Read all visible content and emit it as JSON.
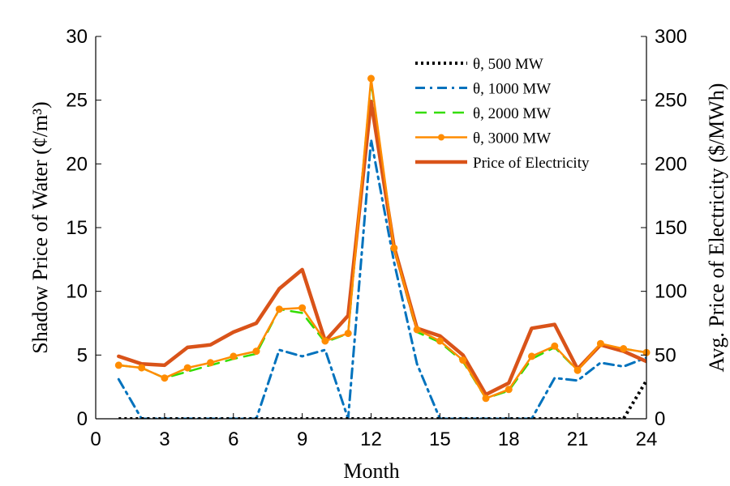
{
  "chart_data": {
    "type": "line",
    "xlabel": "Month",
    "ylabel_left": "Shadow Price of Water (¢/m³)",
    "ylabel_right": "Avg. Price of Electricity ($/MWh)",
    "xlim": [
      0,
      24
    ],
    "ylim_left": [
      0,
      30
    ],
    "ylim_right": [
      0,
      300
    ],
    "xticks": [
      0,
      3,
      6,
      9,
      12,
      15,
      18,
      21,
      24
    ],
    "yticks_left": [
      0,
      5,
      10,
      15,
      20,
      25,
      30
    ],
    "yticks_right": [
      0,
      50,
      100,
      150,
      200,
      250,
      300
    ],
    "grid": false,
    "legend_position": "top-right",
    "series": [
      {
        "name": "θ, 500 MW",
        "axis": "left",
        "color": "#000000",
        "style": "dotted",
        "x": [
          1,
          2,
          3,
          4,
          5,
          6,
          7,
          8,
          9,
          10,
          11,
          12,
          13,
          14,
          15,
          16,
          17,
          18,
          19,
          20,
          21,
          22,
          23,
          24
        ],
        "values": [
          0,
          0,
          0,
          0,
          0,
          0,
          0,
          0,
          0,
          0,
          0,
          0,
          0,
          0,
          0,
          0,
          0,
          0,
          0,
          0,
          0,
          0,
          0,
          3
        ]
      },
      {
        "name": "θ, 1000 MW",
        "axis": "left",
        "color": "#0072BD",
        "style": "dashdot",
        "x": [
          1,
          2,
          3,
          4,
          5,
          6,
          7,
          8,
          9,
          10,
          11,
          12,
          13,
          14,
          15,
          16,
          17,
          18,
          19,
          20,
          21,
          22,
          23,
          24
        ],
        "values": [
          3.1,
          0,
          0,
          0,
          0,
          0,
          0,
          5.4,
          4.9,
          5.4,
          0,
          21.9,
          12.3,
          4.3,
          0,
          0,
          0,
          0,
          0,
          3.2,
          3.0,
          4.4,
          4.1,
          4.8
        ]
      },
      {
        "name": "θ, 2000 MW",
        "axis": "left",
        "color": "#33dd00",
        "style": "dashed",
        "x": [
          1,
          2,
          3,
          4,
          5,
          6,
          7,
          8,
          9,
          10,
          11,
          12,
          13,
          14,
          15,
          16,
          17,
          18,
          19,
          20,
          21,
          22,
          23,
          24
        ],
        "values": [
          4.2,
          4.0,
          3.2,
          3.7,
          4.2,
          4.7,
          5.1,
          8.6,
          8.3,
          6.0,
          6.7,
          26.5,
          13.3,
          6.8,
          6.0,
          4.5,
          1.6,
          2.2,
          4.7,
          5.6,
          3.8,
          5.8,
          5.5,
          5.2
        ]
      },
      {
        "name": "θ, 3000 MW",
        "axis": "left",
        "color": "#FF8C00",
        "style": "solid-marker",
        "x": [
          1,
          2,
          3,
          4,
          5,
          6,
          7,
          8,
          9,
          10,
          11,
          12,
          13,
          14,
          15,
          16,
          17,
          18,
          19,
          20,
          21,
          22,
          23,
          24
        ],
        "values": [
          4.2,
          4.0,
          3.2,
          4.0,
          4.4,
          4.9,
          5.3,
          8.6,
          8.7,
          6.1,
          6.7,
          26.7,
          13.4,
          7.0,
          6.1,
          4.6,
          1.6,
          2.3,
          4.9,
          5.7,
          3.8,
          5.9,
          5.5,
          5.2
        ]
      },
      {
        "name": "Price of Electricity",
        "axis": "right",
        "color": "#D95319",
        "style": "solid-thick",
        "x": [
          1,
          2,
          3,
          4,
          5,
          6,
          7,
          8,
          9,
          10,
          11,
          12,
          13,
          14,
          15,
          16,
          17,
          18,
          19,
          20,
          21,
          22,
          23,
          24
        ],
        "values": [
          49,
          43,
          42,
          56,
          58,
          68,
          75,
          102,
          117,
          61,
          81,
          249,
          135,
          71,
          65,
          50,
          19,
          28,
          71,
          74,
          39,
          58,
          53,
          45
        ]
      }
    ]
  }
}
